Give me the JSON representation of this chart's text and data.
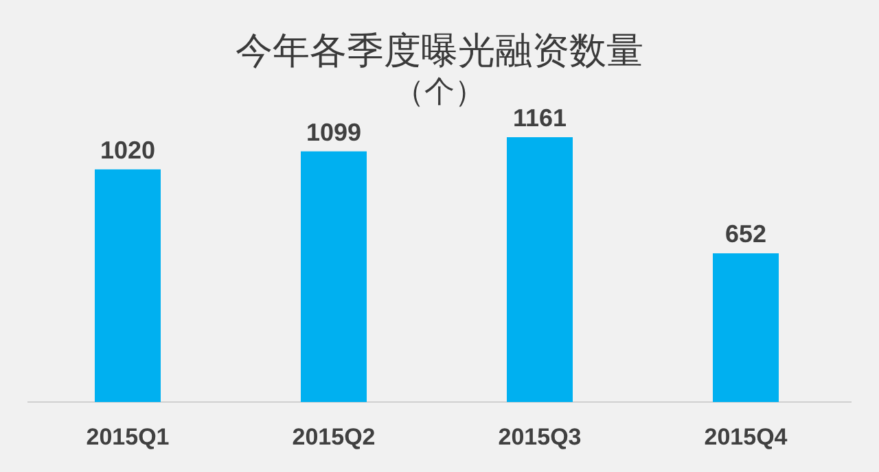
{
  "chart_data": {
    "type": "bar",
    "title": "今年各季度曝光融资数量",
    "subtitle": "（个）",
    "categories": [
      "2015Q1",
      "2015Q2",
      "2015Q3",
      "2015Q4"
    ],
    "values": [
      1020,
      1099,
      1161,
      652
    ],
    "color": "#00b0f0",
    "data_labels": true
  }
}
